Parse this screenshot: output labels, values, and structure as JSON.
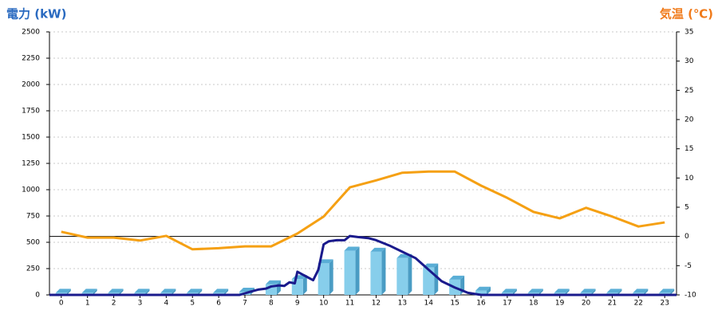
{
  "chart_data": {
    "type": "combo",
    "title_left": "電力 (kW)",
    "title_right": "気温 (℃)",
    "xlim": [
      -0.45,
      23.45
    ],
    "xticks": [
      0,
      1,
      2,
      3,
      4,
      5,
      6,
      7,
      8,
      9,
      10,
      11,
      12,
      13,
      14,
      15,
      16,
      17,
      18,
      19,
      20,
      21,
      22,
      23
    ],
    "ylim": [
      0,
      2500
    ],
    "yticks": [
      0,
      250,
      500,
      750,
      1000,
      1250,
      1500,
      1750,
      2000,
      2250,
      2500
    ],
    "y2lim": [
      -10,
      35
    ],
    "y2ticks": [
      -10,
      -5,
      0,
      5,
      10,
      15,
      20,
      25,
      30,
      35
    ],
    "grid": true,
    "series": [
      {
        "type": "bar",
        "color": "#87ceeb",
        "x": [
          0,
          1,
          2,
          3,
          4,
          5,
          6,
          7,
          8,
          9,
          10,
          11,
          12,
          13,
          14,
          15,
          16,
          17,
          18,
          19,
          20,
          21,
          22,
          23
        ],
        "values": [
          20,
          20,
          20,
          20,
          20,
          20,
          20,
          30,
          100,
          150,
          300,
          420,
          410,
          350,
          260,
          145,
          40,
          20,
          20,
          20,
          20,
          20,
          20,
          20
        ]
      },
      {
        "type": "line",
        "color": "#1a1a8c",
        "x": [
          -0.45,
          6.8,
          7.2,
          7.5,
          7.8,
          8,
          8.3,
          8.5,
          8.7,
          8.9,
          9,
          9.3,
          9.6,
          9.8,
          10,
          10.2,
          10.5,
          10.8,
          11,
          11.3,
          11.7,
          12,
          12.5,
          13,
          13.5,
          14,
          14.5,
          15,
          15.5,
          16,
          23.45
        ],
        "values": [
          0,
          0,
          30,
          50,
          60,
          80,
          90,
          85,
          120,
          110,
          220,
          180,
          140,
          240,
          480,
          510,
          520,
          520,
          560,
          550,
          540,
          520,
          470,
          410,
          350,
          240,
          130,
          70,
          20,
          0,
          0
        ]
      },
      {
        "type": "line",
        "color": "#f5a013",
        "axis": "y2",
        "x": [
          0,
          1,
          2,
          3,
          4,
          5,
          6,
          7,
          8,
          9,
          10,
          11,
          12,
          13,
          14,
          15,
          16,
          17,
          18,
          19,
          20,
          21,
          22,
          23
        ],
        "values": [
          0.8,
          -0.2,
          -0.2,
          -0.7,
          0.1,
          -2.2,
          -2.0,
          -1.7,
          -1.7,
          0.5,
          3.4,
          8.4,
          9.6,
          10.9,
          11.1,
          11.1,
          8.7,
          6.6,
          4.2,
          3.1,
          4.9,
          3.4,
          1.7,
          2.4
        ]
      }
    ]
  }
}
